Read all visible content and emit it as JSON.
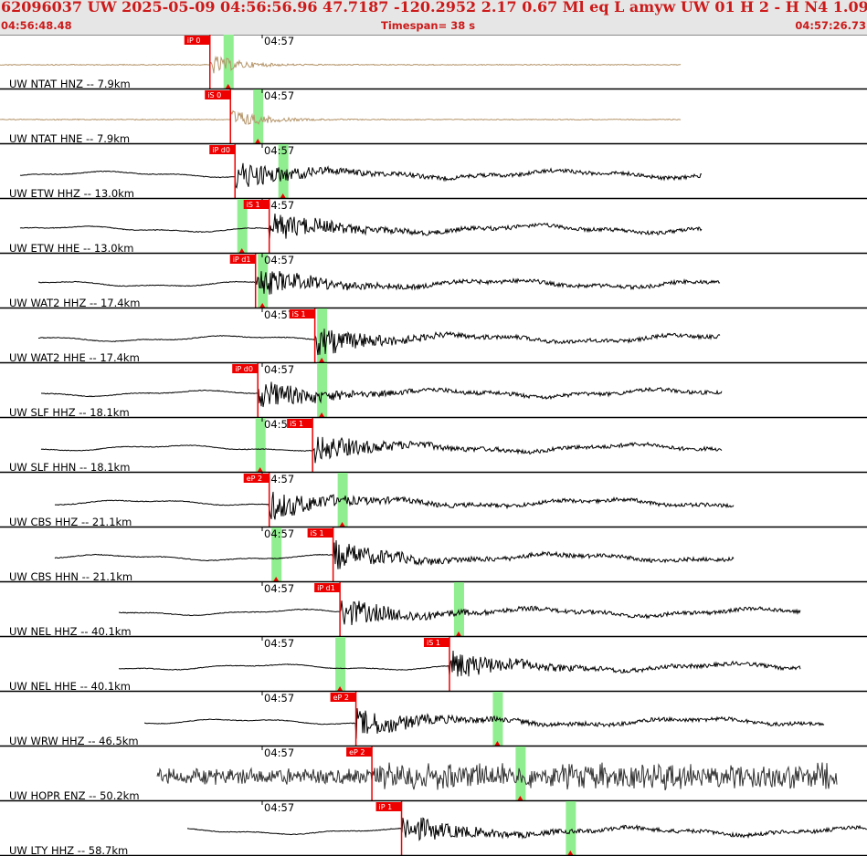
{
  "header": {
    "title": "62096037 UW 2025-05-09 04:56:56.96   47.7187 -120.2952   2.17  0.67 Ml  eq  L amyw     UW 01  H   2  -  H N4    1.09  1.09",
    "start_time": "04:56:48.48",
    "timespan": "Timespan=  38 s",
    "end_time": "04:57:26.73"
  },
  "colors": {
    "header_bg": "#e6e6e6",
    "header_text": "#cc1a1a",
    "waveform_local": "#b5956a",
    "waveform": "#000000",
    "waveform_noisy": "#333333",
    "pick_flag": "#ee0000",
    "pick_window": "#90ee90",
    "separator": "#000000"
  },
  "time_tick_label": "04:57",
  "timespan_seconds": 38,
  "channels": [
    {
      "label": "UW NTAT HNZ -- 7.9km",
      "pick": "iP 0",
      "pick_time": 9.2,
      "window_time": 10.0,
      "color": "waveform_local"
    },
    {
      "label": "UW NTAT HNE -- 7.9km",
      "pick": "iS 0",
      "pick_time": 10.1,
      "window_time": 11.3,
      "color": "waveform_local"
    },
    {
      "label": "UW ETW HHZ -- 13.0km",
      "pick": "iP d0",
      "pick_time": 10.3,
      "window_time": 12.4,
      "color": "waveform"
    },
    {
      "label": "UW ETW HHE -- 13.0km",
      "pick": "iS 1",
      "pick_time": 11.8,
      "window_time": 10.6,
      "color": "waveform"
    },
    {
      "label": "UW WAT2 HHZ -- 17.4km",
      "pick": "iP d1",
      "pick_time": 11.2,
      "window_time": 11.5,
      "color": "waveform"
    },
    {
      "label": "UW WAT2 HHE -- 17.4km",
      "pick": "iS 1",
      "pick_time": 13.8,
      "window_time": 14.1,
      "color": "waveform"
    },
    {
      "label": "UW SLF HHZ -- 18.1km",
      "pick": "iP d0",
      "pick_time": 11.3,
      "window_time": 14.1,
      "color": "waveform"
    },
    {
      "label": "UW SLF HHN -- 18.1km",
      "pick": "iS 1",
      "pick_time": 13.7,
      "window_time": 11.4,
      "color": "waveform"
    },
    {
      "label": "UW CBS HHZ -- 21.1km",
      "pick": "eP 2",
      "pick_time": 11.8,
      "window_time": 15.0,
      "color": "waveform"
    },
    {
      "label": "UW CBS HHN -- 21.1km",
      "pick": "iS 1",
      "pick_time": 14.6,
      "window_time": 12.1,
      "color": "waveform"
    },
    {
      "label": "UW NEL HHZ -- 40.1km",
      "pick": "iP d1",
      "pick_time": 14.9,
      "window_time": 20.1,
      "color": "waveform"
    },
    {
      "label": "UW NEL HHE -- 40.1km",
      "pick": "iS 1",
      "pick_time": 19.7,
      "window_time": 14.9,
      "color": "waveform"
    },
    {
      "label": "UW WRW HHZ -- 46.5km",
      "pick": "eP 2",
      "pick_time": 15.6,
      "window_time": 21.8,
      "color": "waveform"
    },
    {
      "label": "UW HOPR ENZ -- 50.2km",
      "pick": "eP 2",
      "pick_time": 16.3,
      "window_time": 22.8,
      "color": "waveform_noisy"
    },
    {
      "label": "UW LTY HHZ -- 58.7km",
      "pick": "iP 1",
      "pick_time": 17.6,
      "window_time": 25.0,
      "color": "waveform"
    }
  ]
}
